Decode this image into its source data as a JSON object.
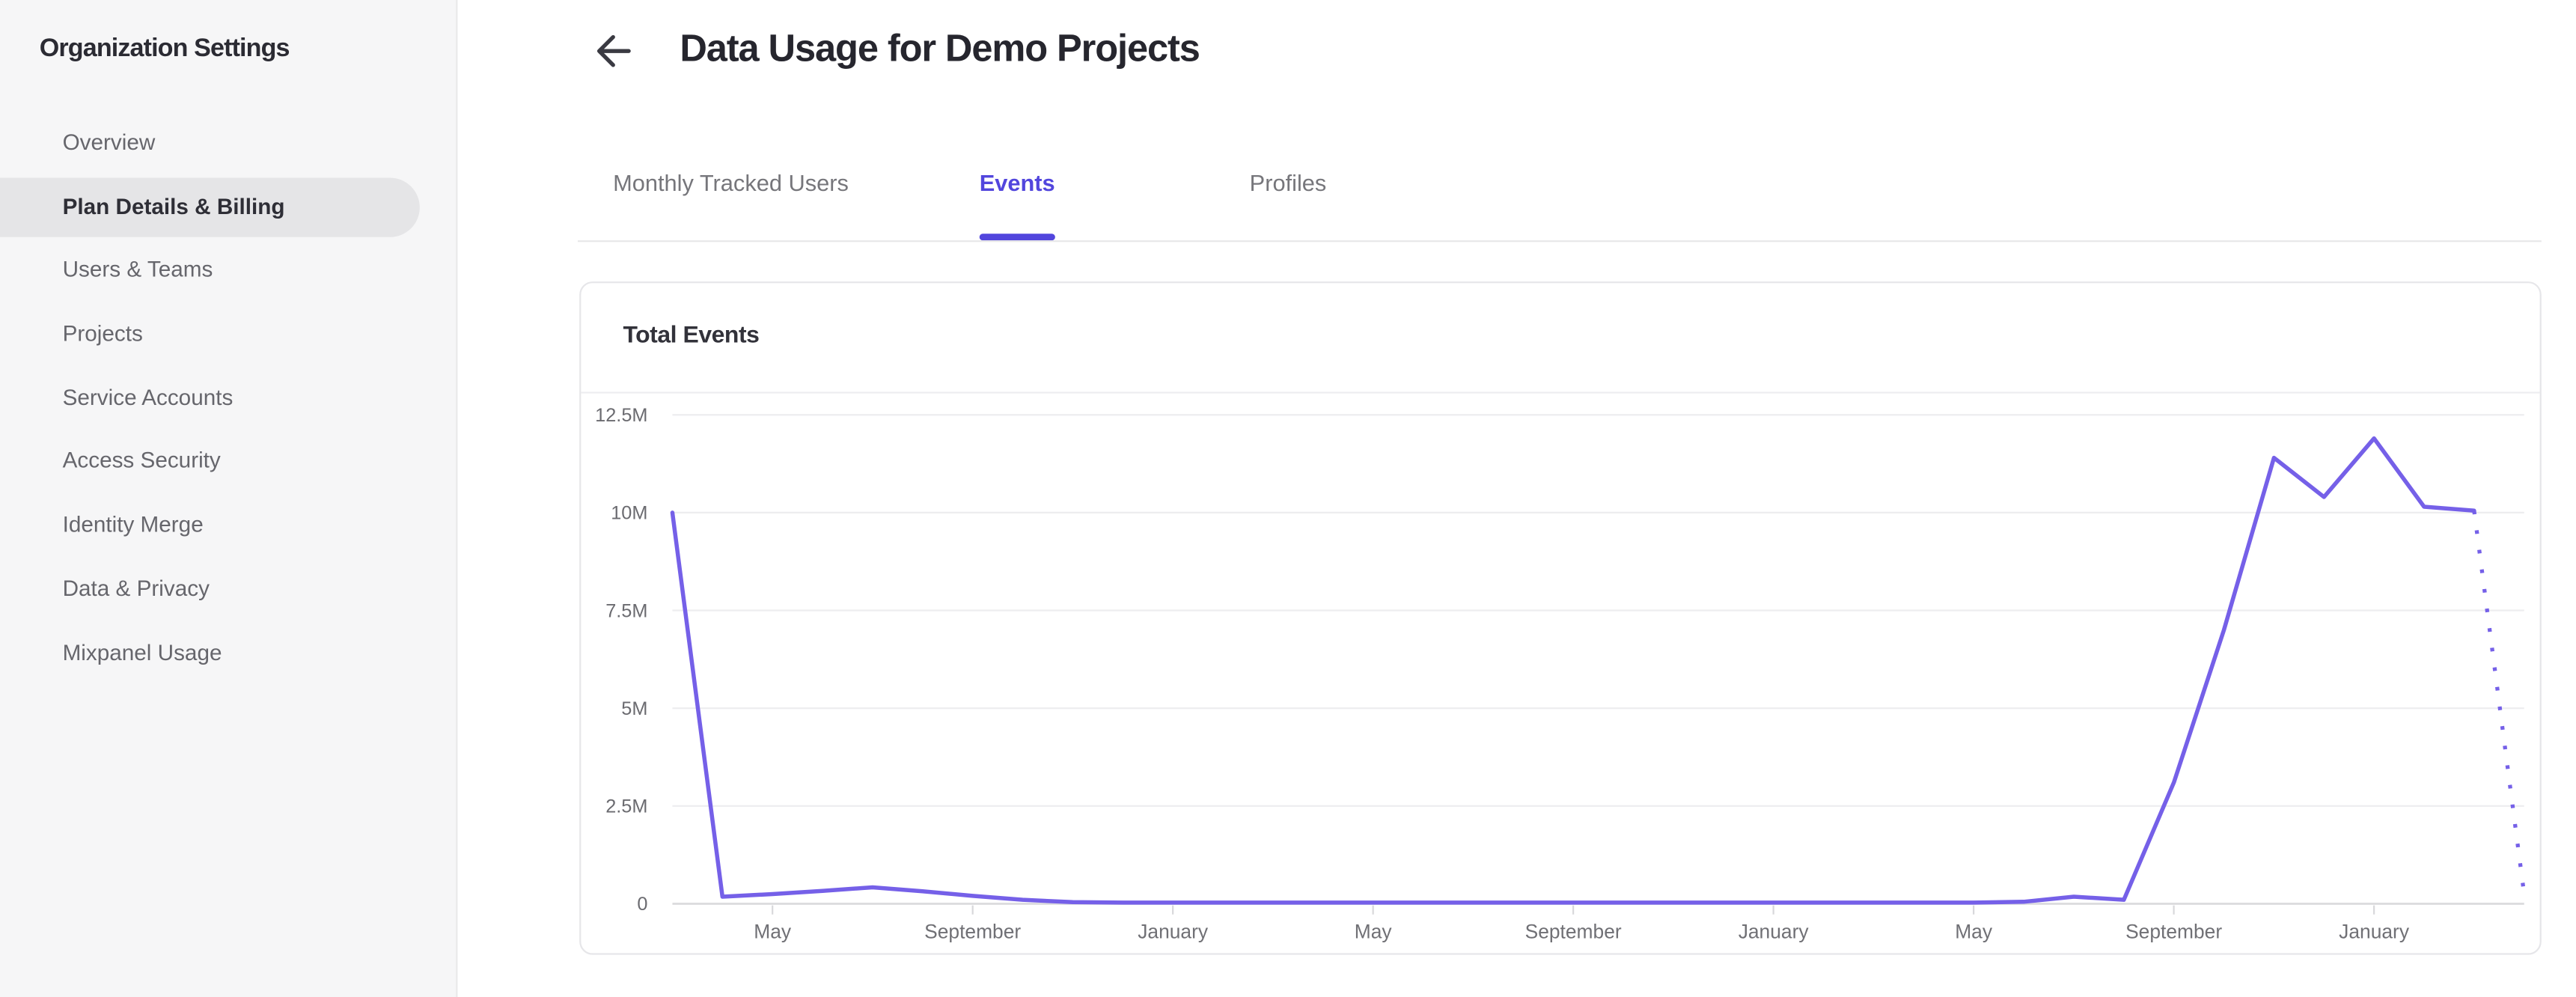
{
  "sidebar": {
    "title": "Organization Settings",
    "items": [
      {
        "label": "Overview",
        "selected": false
      },
      {
        "label": "Plan Details & Billing",
        "selected": true
      },
      {
        "label": "Users & Teams",
        "selected": false
      },
      {
        "label": "Projects",
        "selected": false
      },
      {
        "label": "Service Accounts",
        "selected": false
      },
      {
        "label": "Access Security",
        "selected": false
      },
      {
        "label": "Identity Merge",
        "selected": false
      },
      {
        "label": "Data & Privacy",
        "selected": false
      },
      {
        "label": "Mixpanel Usage",
        "selected": false
      }
    ]
  },
  "header": {
    "back_icon": "arrow-left-icon",
    "title": "Data Usage for Demo Projects"
  },
  "tabs": [
    {
      "label": "Monthly Tracked Users",
      "active": false
    },
    {
      "label": "Events",
      "active": true
    },
    {
      "label": "Profiles",
      "active": false
    }
  ],
  "card": {
    "title": "Total Events"
  },
  "colors": {
    "accent_tab": "#5246dd",
    "chart_line": "#7560e8",
    "sidebar_selected_bg": "#e5e5e7"
  },
  "chart_data": {
    "type": "line",
    "title": "Total Events",
    "legend": "none",
    "grid": "horizontal-only",
    "ylim": [
      0,
      12500000
    ],
    "y_tick_labels": [
      "12.5M",
      "10M",
      "7.5M",
      "5M",
      "2.5M",
      "0"
    ],
    "y_tick_values": [
      12500000,
      10000000,
      7500000,
      5000000,
      2500000,
      0
    ],
    "x_tick_labels": [
      "May",
      "September",
      "January",
      "May",
      "September",
      "January",
      "May",
      "September",
      "January"
    ],
    "x_tick_month_indices": [
      2,
      6,
      10,
      14,
      18,
      22,
      26,
      30,
      34
    ],
    "dashed_from_index": 36,
    "series": [
      {
        "name": "Total Events",
        "values": [
          10000000,
          180000,
          250000,
          330000,
          420000,
          320000,
          200000,
          100000,
          40000,
          30000,
          30000,
          30000,
          30000,
          30000,
          30000,
          30000,
          30000,
          30000,
          30000,
          30000,
          30000,
          30000,
          30000,
          30000,
          30000,
          30000,
          30000,
          50000,
          180000,
          100000,
          3100000,
          7000000,
          11400000,
          10400000,
          11900000,
          10150000,
          10050000,
          250000
        ]
      }
    ]
  }
}
